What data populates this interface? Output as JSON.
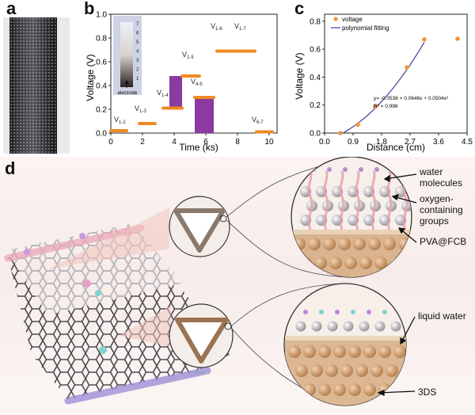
{
  "panels": {
    "a": "a",
    "b": "b",
    "c": "c",
    "d": "d"
  },
  "panel_b": {
    "xlabel": "Time (ks)",
    "ylabel": "Voltage (V)",
    "x_ticks": [
      "0",
      "2",
      "4",
      "6",
      "8",
      "10"
    ],
    "y_ticks": [
      "0.0",
      "0.2",
      "0.4",
      "0.6",
      "0.8",
      "1.0"
    ],
    "inset_label": "electrode",
    "inset_numbers": [
      "7",
      "6",
      "5",
      "4",
      "3",
      "2",
      "1"
    ],
    "colors": {
      "segment": "#f08a24",
      "bar": "#8a3aa0",
      "baseline": "#333333"
    }
  },
  "panel_c": {
    "xlabel": "Distance (cm)",
    "ylabel": "Voltage (V)",
    "x_ticks": [
      "0.0",
      "0.9",
      "1.8",
      "2.7",
      "3.6",
      "4.5"
    ],
    "y_ticks": [
      "0.0",
      "0.2",
      "0.4",
      "0.6",
      "0.8"
    ],
    "legend": [
      "voltage",
      "polynomial fitting"
    ],
    "equation": "y= -0.0536 + 0.0646x + 0.0504x²",
    "r2": "R² = 0.998",
    "colors": {
      "point": "#f0963a",
      "fit": "#4a3aa0"
    }
  },
  "panel_d": {
    "labels": {
      "water": "water molecules",
      "oxygen": "oxygen-containing groups",
      "pva": "PVA@FCB",
      "liquid": "liquid water",
      "tds": "3DS"
    },
    "plus": "+",
    "minus": "—"
  },
  "chart_data": [
    {
      "type": "line",
      "title": "",
      "xlabel": "Time (ks)",
      "ylabel": "Voltage (V)",
      "xlim": [
        0,
        10.5
      ],
      "ylim": [
        0,
        1.0
      ],
      "series": [
        {
          "name": "V1-2",
          "x": [
            0,
            1.0
          ],
          "y": [
            0.02,
            0.02
          ]
        },
        {
          "name": "V1-3",
          "x": [
            1.8,
            2.8
          ],
          "y": [
            0.08,
            0.08
          ]
        },
        {
          "name": "V1-4",
          "x": [
            3.3,
            4.5
          ],
          "y": [
            0.21,
            0.21
          ]
        },
        {
          "name": "V1-5",
          "x": [
            4.5,
            5.6
          ],
          "y": [
            0.48,
            0.48
          ]
        },
        {
          "name": "V4-5",
          "x": [
            5.3,
            6.5
          ],
          "y": [
            0.3,
            0.3
          ]
        },
        {
          "name": "V1-6",
          "x": [
            6.7,
            7.9
          ],
          "y": [
            0.69,
            0.69
          ]
        },
        {
          "name": "V1-7",
          "x": [
            8.0,
            9.1
          ],
          "y": [
            0.69,
            0.69
          ]
        },
        {
          "name": "V6-7",
          "x": [
            9.2,
            10.2
          ],
          "y": [
            0.01,
            0.01
          ]
        }
      ],
      "bars": [
        {
          "x0": 3.7,
          "x1": 4.5,
          "y0": 0.21,
          "y1": 0.48
        },
        {
          "x0": 5.3,
          "x1": 6.5,
          "y0": 0.0,
          "y1": 0.3
        }
      ]
    },
    {
      "type": "scatter",
      "title": "",
      "xlabel": "Distance (cm)",
      "ylabel": "Voltage (V)",
      "xlim": [
        0,
        4.5
      ],
      "ylim": [
        0,
        0.85
      ],
      "series": [
        {
          "name": "voltage",
          "x": [
            0.5,
            1.05,
            1.6,
            2.6,
            3.15,
            4.2
          ],
          "y": [
            0.0,
            0.06,
            0.19,
            0.47,
            0.67,
            0.675
          ]
        },
        {
          "name": "polynomial fitting",
          "equation": "y= -0.0536 + 0.0646x + 0.0504x²"
        }
      ]
    }
  ]
}
